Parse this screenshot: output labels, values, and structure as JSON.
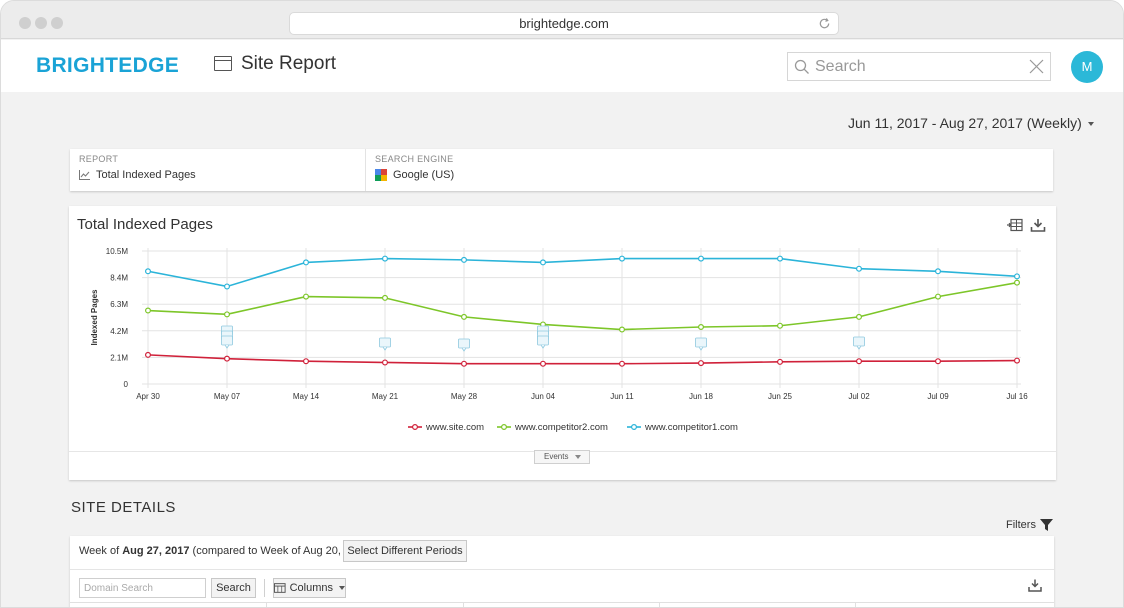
{
  "browser": {
    "url": "brightedge.com"
  },
  "header": {
    "logo": "BRIGHTEDGE",
    "page_title": "Site Report",
    "search_placeholder": "Search",
    "avatar_initial": "M"
  },
  "date_range": "Jun 11, 2017 - Aug 27, 2017 (Weekly)",
  "info": {
    "report_label": "REPORT",
    "report_value": "Total Indexed Pages",
    "engine_label": "SEARCH ENGINE",
    "engine_value": "Google (US)"
  },
  "chart_card": {
    "title": "Total Indexed Pages",
    "events_label": "Events"
  },
  "chart_data": {
    "type": "line",
    "ylabel": "Indexed Pages",
    "xlabel": "",
    "ylim": [
      0,
      10500000
    ],
    "y_ticks": [
      "0",
      "2.1M",
      "4.2M",
      "6.3M",
      "8.4M",
      "10.5M"
    ],
    "categories": [
      "Apr 30",
      "May 07",
      "May 14",
      "May 21",
      "May 28",
      "Jun 04",
      "Jun 11",
      "Jun 18",
      "Jun 25",
      "Jul 02",
      "Jul 09",
      "Jul 16"
    ],
    "grid": true,
    "legend": "bottom",
    "series": [
      {
        "name": "www.site.com",
        "color": "#d0213a",
        "values": [
          2300000,
          2000000,
          1800000,
          1700000,
          1600000,
          1600000,
          1600000,
          1650000,
          1750000,
          1800000,
          1800000,
          1850000
        ]
      },
      {
        "name": "www.competitor2.com",
        "color": "#7dc629",
        "values": [
          5800000,
          5500000,
          6900000,
          6800000,
          5300000,
          4700000,
          4300000,
          4500000,
          4600000,
          5300000,
          6900000,
          8000000
        ]
      },
      {
        "name": "www.competitor1.com",
        "color": "#2bb4d9",
        "values": [
          8900000,
          7700000,
          9600000,
          9900000,
          9800000,
          9600000,
          9900000,
          9900000,
          9900000,
          9100000,
          8900000,
          8500000
        ]
      }
    ],
    "event_markers": [
      "May 07",
      "May 21",
      "May 28",
      "Jun 04",
      "Jun 18",
      "Jul 02"
    ]
  },
  "site_details": {
    "title": "SITE DETAILS",
    "filters_label": "Filters",
    "week_prefix": "Week of ",
    "week_bold": "Aug 27, 2017",
    "week_suffix": " (compared to Week of Aug 20, 2017)",
    "select_periods_button": "Select Different Periods",
    "domain_search_placeholder": "Domain Search",
    "search_button": "Search",
    "columns_button": "Columns"
  }
}
